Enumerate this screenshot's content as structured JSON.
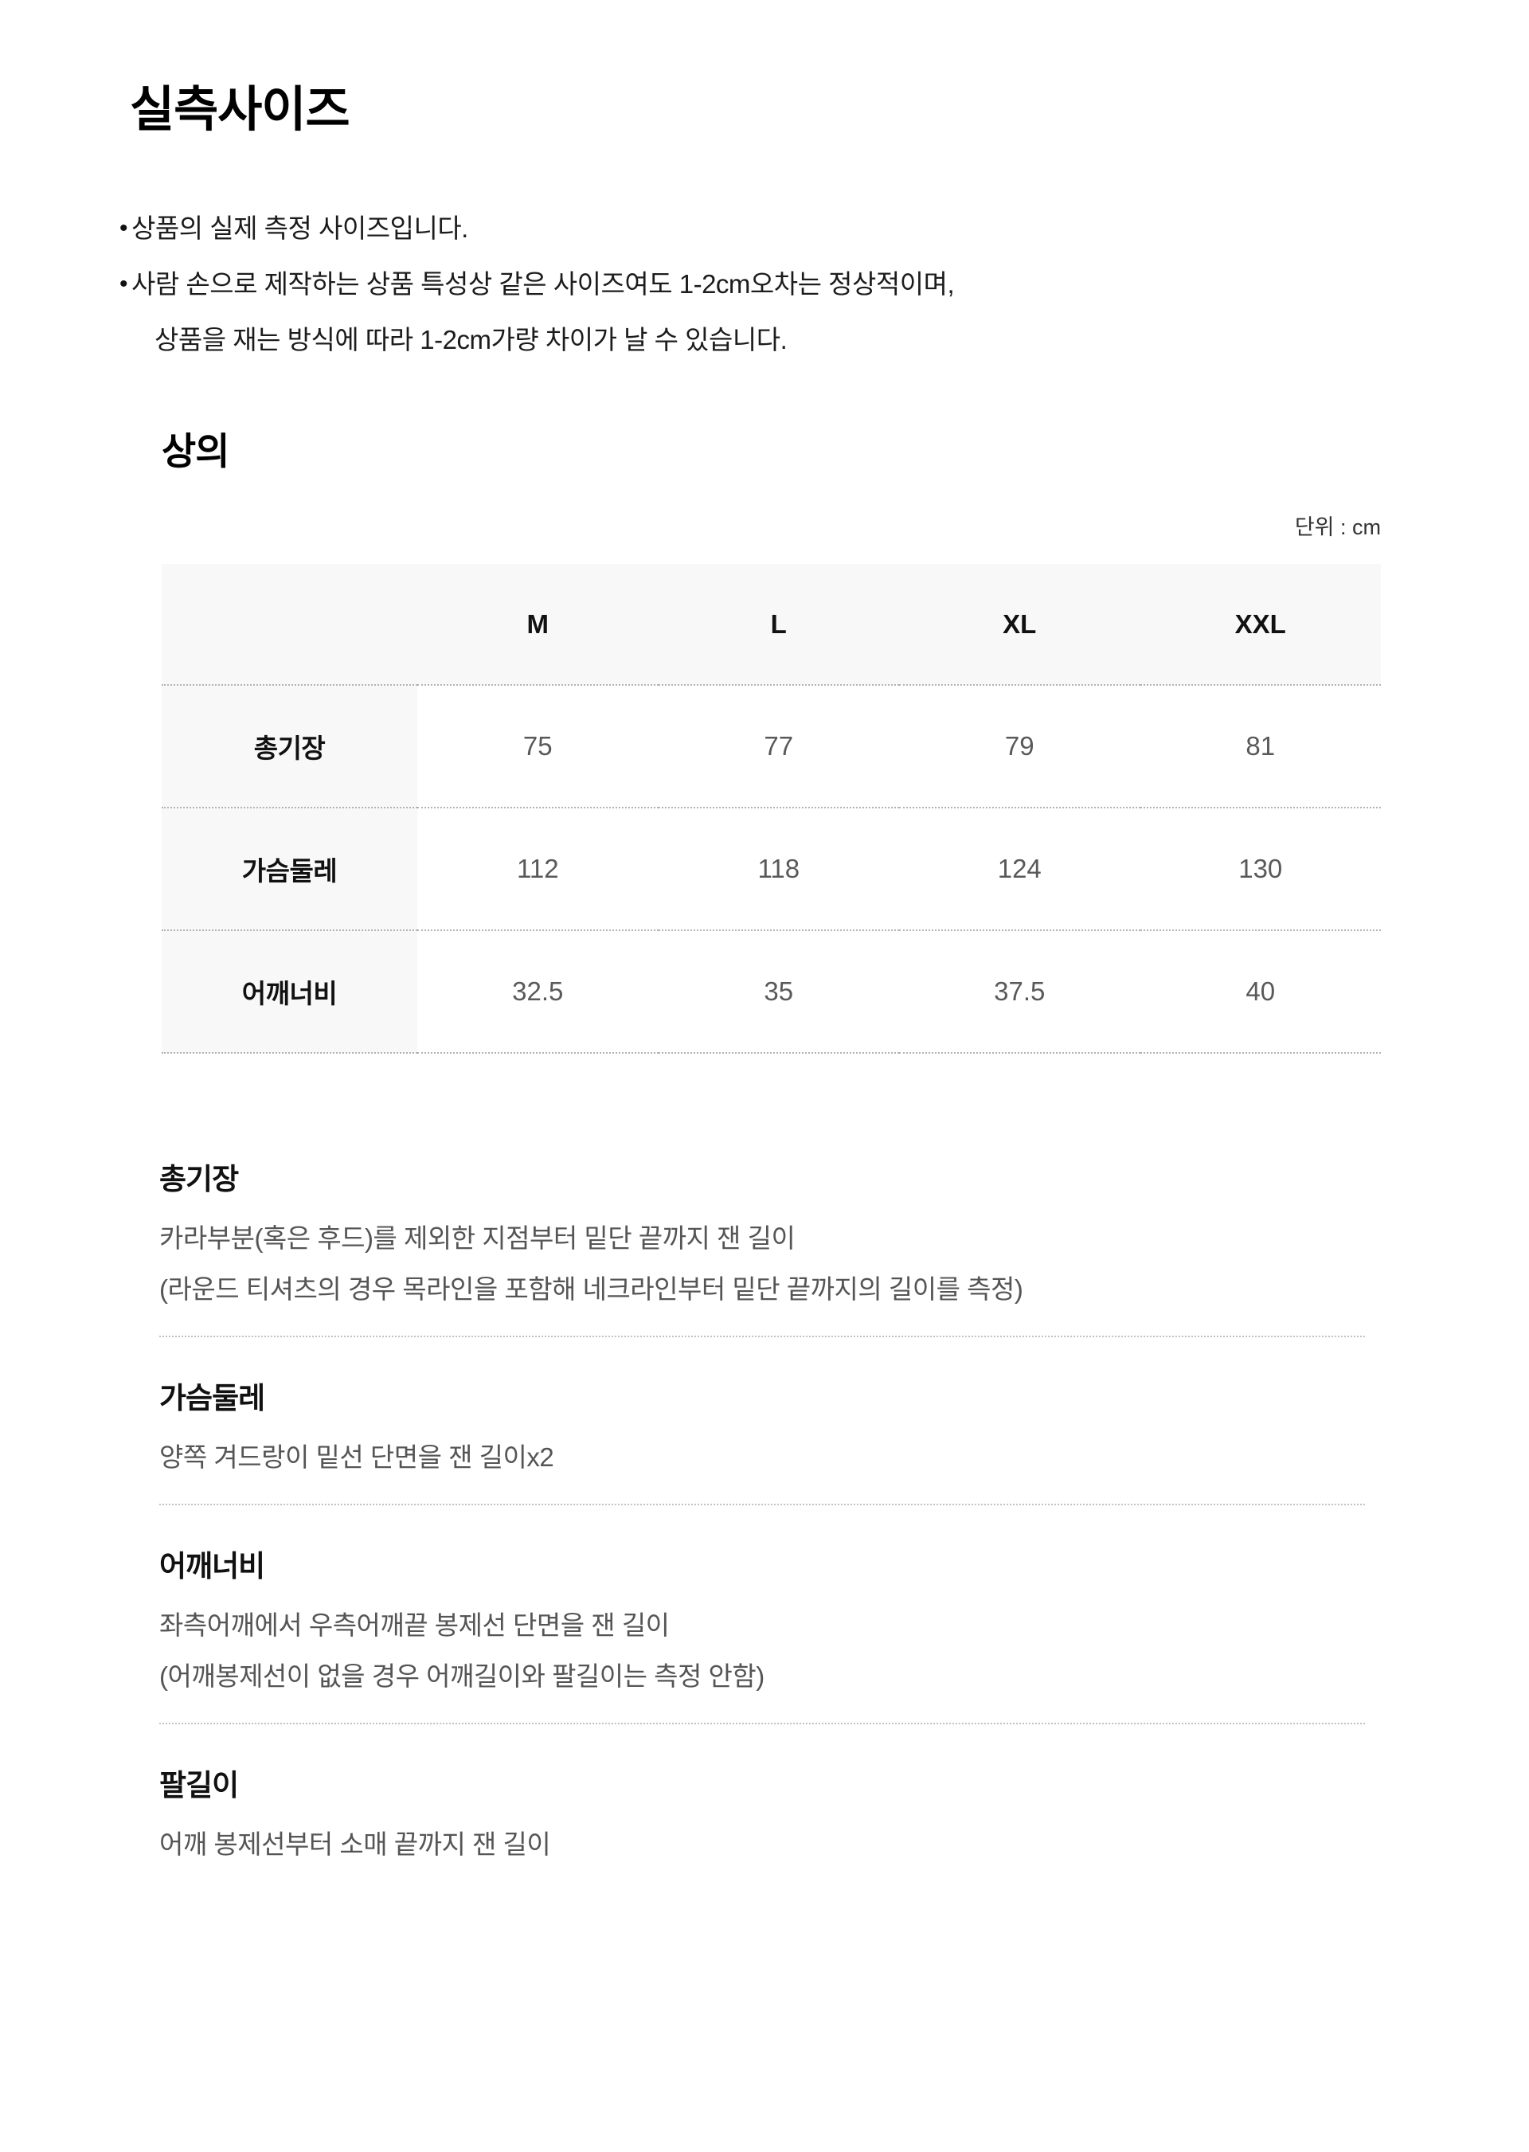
{
  "page": {
    "title": "실측사이즈",
    "notes": [
      {
        "bullet": "•",
        "text": "상품의 실제 측정 사이즈입니다."
      },
      {
        "bullet": "•",
        "text": "사람 손으로 제작하는 상품 특성상 같은 사이즈여도 1-2cm오차는 정상적이며,",
        "continuation": "상품을 재는 방식에 따라 1-2cm가량 차이가 날 수 있습니다."
      }
    ]
  },
  "size_chart": {
    "section_title": "상의",
    "unit_label": "단위 : cm",
    "columns": [
      "M",
      "L",
      "XL",
      "XXL"
    ],
    "rows": [
      {
        "label": "총기장",
        "values": [
          "75",
          "77",
          "79",
          "81"
        ]
      },
      {
        "label": "가슴둘레",
        "values": [
          "112",
          "118",
          "124",
          "130"
        ]
      },
      {
        "label": "어깨너비",
        "values": [
          "32.5",
          "35",
          "37.5",
          "40"
        ]
      }
    ]
  },
  "measure_guide": {
    "sections": [
      {
        "title": "총기장",
        "lines": [
          "카라부분(혹은 후드)를 제외한 지점부터 밑단 끝까지 잰 길이",
          "(라운드 티셔츠의 경우 목라인을 포함해 네크라인부터 밑단 끝까지의 길이를 측정)"
        ]
      },
      {
        "title": "가슴둘레",
        "lines": [
          "양쪽 겨드랑이 밑선 단면을 잰 길이x2"
        ]
      },
      {
        "title": "어깨너비",
        "lines": [
          "좌측어깨에서 우측어깨끝 봉제선 단면을 잰 길이",
          "(어깨봉제선이 없을 경우 어깨길이와 팔길이는 측정 안함)"
        ]
      },
      {
        "title": "팔길이",
        "lines": [
          "어깨 봉제선부터 소매 끝까지 잰 길이"
        ]
      }
    ]
  },
  "colors": {
    "header_cell_bg": "#f8f8f8",
    "table_dotted_line": "#b3b3b3",
    "section_dotted_line": "#c2c2c2",
    "value_text": "#595959",
    "body_text": "#555555",
    "heading_text": "#111111"
  }
}
